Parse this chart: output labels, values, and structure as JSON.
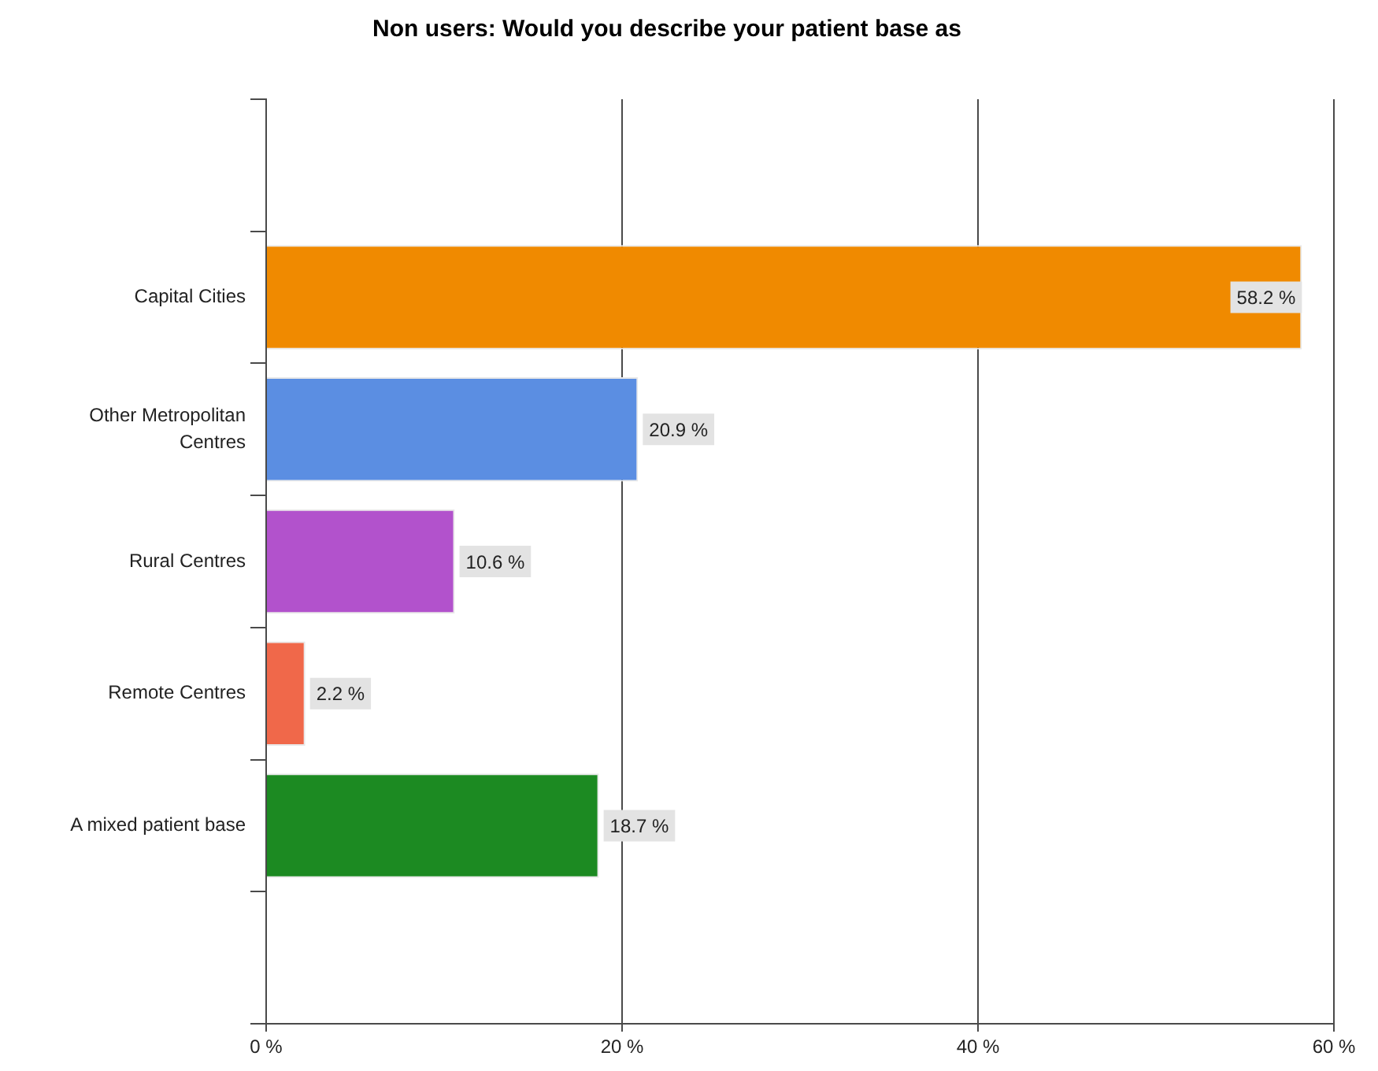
{
  "chart_data": {
    "type": "bar",
    "orientation": "horizontal",
    "title": "Non users: Would you describe your patient base as",
    "categories": [
      "Capital Cities",
      "Other Metropolitan Centres",
      "Rural Centres",
      "Remote Centres",
      "A mixed patient base"
    ],
    "values": [
      58.2,
      20.9,
      10.6,
      2.2,
      18.7
    ],
    "colors": [
      "#f08a00",
      "#5b8ee2",
      "#b252cc",
      "#f0684a",
      "#1c8a22"
    ],
    "value_labels": [
      "58.2 %",
      "20.9 %",
      "10.6 %",
      "2.2 %",
      "18.7 %"
    ],
    "xlim": [
      0,
      60
    ],
    "xticks": [
      {
        "value": 0,
        "label": "0 %"
      },
      {
        "value": 20,
        "label": "20 %"
      },
      {
        "value": 40,
        "label": "40 %"
      },
      {
        "value": 60,
        "label": "60 %"
      }
    ],
    "grid": "x"
  }
}
